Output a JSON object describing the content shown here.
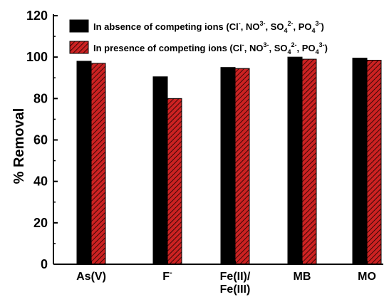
{
  "chart_data": {
    "type": "bar",
    "categories": [
      "As(V)",
      "F⁻",
      "Fe(II)/Fe(III)",
      "MB",
      "MO"
    ],
    "category_lines": [
      [
        "As(V)"
      ],
      [
        "F",
        "-"
      ],
      [
        "Fe(II)/",
        "Fe(III)"
      ],
      [
        "MB"
      ],
      [
        "MO"
      ]
    ],
    "series": [
      {
        "name": "In absence of competing ions (Cl⁻, NO3⁻, SO4²⁻, PO4³⁻)",
        "legend_parts": [
          {
            "t": "In absence of competing ions (Cl"
          },
          {
            "t": "-",
            "sup": true
          },
          {
            "t": ", NO"
          },
          {
            "t": "3-",
            "sup": true
          },
          {
            "t": ", SO"
          },
          {
            "t": "4",
            "sub": true
          },
          {
            "t": "2-",
            "sup": true
          },
          {
            "t": ", PO"
          },
          {
            "t": "4",
            "sub": true
          },
          {
            "t": "3-",
            "sup": true
          },
          {
            "t": ")"
          }
        ],
        "values": [
          98,
          90.5,
          95,
          100,
          99.5
        ],
        "color": "#000000",
        "pattern": "solid"
      },
      {
        "name": "In presence of competing ions (Cl⁻, NO3⁻, SO4²⁻, PO4³⁻)",
        "legend_parts": [
          {
            "t": "In presence of competing ions (Cl"
          },
          {
            "t": "-",
            "sup": true
          },
          {
            "t": ", NO"
          },
          {
            "t": "3-",
            "sup": true
          },
          {
            "t": ", SO"
          },
          {
            "t": "4",
            "sub": true
          },
          {
            "t": "2-",
            "sup": true
          },
          {
            "t": ", PO"
          },
          {
            "t": "4",
            "sub": true
          },
          {
            "t": "3-",
            "sup": true
          },
          {
            "t": ")"
          }
        ],
        "values": [
          97,
          80,
          94.5,
          99,
          98.5
        ],
        "color": "#cc2222",
        "pattern": "hatched"
      }
    ],
    "title": "",
    "xlabel": "",
    "ylabel": "% Removal",
    "ylim": [
      0,
      120
    ],
    "yticks": [
      "0",
      "20",
      "40",
      "60",
      "80",
      "100",
      "120"
    ],
    "grid": false,
    "legend_position": "top"
  }
}
